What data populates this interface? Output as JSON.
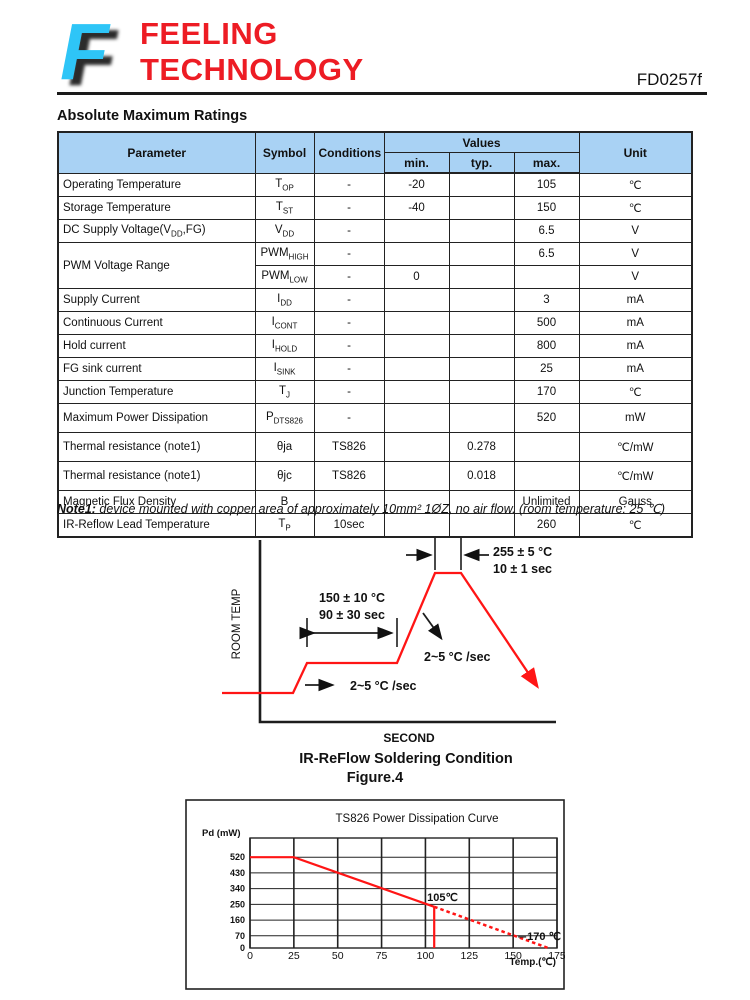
{
  "header": {
    "logo_glyph": "F",
    "logo_cyan": "#2ec5f7",
    "brand_red": "#ed1c24",
    "company_line1": "FEELING",
    "company_line2": "TECHNOLOGY",
    "doc_id": "FD0257f"
  },
  "section_title": "Absolute Maximum Ratings",
  "table": {
    "header_bg": "#a9d2f4",
    "headers": {
      "parameter": "Parameter",
      "symbol": "Symbol",
      "conditions": "Conditions",
      "values": "Values",
      "min": "min.",
      "typ": "typ.",
      "max": "max.",
      "unit": "Unit"
    },
    "rows": [
      {
        "param": "Operating Temperature",
        "sym": "T_{OP}",
        "cond": "-",
        "min": "-20",
        "typ": "",
        "max": "105",
        "unit": "℃"
      },
      {
        "param": "Storage Temperature",
        "sym": "T_{ST}",
        "cond": "-",
        "min": "-40",
        "typ": "",
        "max": "150",
        "unit": "℃"
      },
      {
        "param": "DC Supply Voltage(V_{DD},FG)",
        "sym": "V_{DD}",
        "cond": "-",
        "min": "",
        "typ": "",
        "max": "6.5",
        "unit": "V"
      },
      {
        "param": "PWM Voltage Range",
        "rowspan": 2,
        "sym": "PWM_{HIGH}",
        "cond": "-",
        "min": "",
        "typ": "",
        "max": "6.5",
        "unit": "V"
      },
      {
        "param": null,
        "sym": "PWM_{LOW}",
        "cond": "-",
        "min": "0",
        "typ": "",
        "max": "",
        "unit": "V"
      },
      {
        "param": "Supply Current",
        "sym": "I_{DD}",
        "cond": "-",
        "min": "",
        "typ": "",
        "max": "3",
        "unit": "mA"
      },
      {
        "param": "Continuous Current",
        "sym": "I_{CONT}",
        "cond": "-",
        "min": "",
        "typ": "",
        "max": "500",
        "unit": "mA"
      },
      {
        "param": "Hold current",
        "sym": "I_{HOLD}",
        "cond": "-",
        "min": "",
        "typ": "",
        "max": "800",
        "unit": "mA"
      },
      {
        "param": "FG sink current",
        "sym": "I_{SINK}",
        "cond": "-",
        "min": "",
        "typ": "",
        "max": "25",
        "unit": "mA"
      },
      {
        "param": "Junction Temperature",
        "sym": "T_{J}",
        "cond": "-",
        "min": "",
        "typ": "",
        "max": "170",
        "unit": "℃"
      },
      {
        "param": "Maximum Power Dissipation",
        "sym": "P_{DTS826}",
        "cond": "-",
        "min": "",
        "typ": "",
        "max": "520",
        "unit": "mW"
      },
      {
        "param": "Thermal resistance  (note1)",
        "sym": "θja",
        "cond": "TS826",
        "min": "",
        "typ": "0.278",
        "max": "",
        "unit": "℃/mW"
      },
      {
        "param": "Thermal resistance  (note1)",
        "sym": "θjc",
        "cond": "TS826",
        "min": "",
        "typ": "0.018",
        "max": "",
        "unit": "℃/mW"
      },
      {
        "param": "Magnetic Flux Density",
        "sym": "B",
        "cond": "",
        "min": "",
        "typ": "",
        "max": "Unlimited",
        "unit": "Gauss"
      },
      {
        "param": "IR-Reflow Lead Temperature",
        "sym": "T_{P}",
        "cond": "10sec",
        "min": "",
        "typ": "",
        "max": "260",
        "unit": "℃"
      }
    ]
  },
  "note": {
    "label": "Note1:",
    "text": " device mounted with copper area of approximately 10mm² 1ØZ, no air flow. (room temperature: 25 ℃)"
  },
  "reflow": {
    "line_color": "#ff1515",
    "y_axis": "ROOM TEMP",
    "x_axis": "SECOND",
    "caption": "IR-ReFlow Soldering Condition",
    "peak_temp": "255 ± 5 °C",
    "peak_time": "10 ± 1 sec",
    "soak_temp": "150 ± 10 °C",
    "soak_time": "90 ± 30 sec",
    "ramp_rate_low": "2~5 °C /sec",
    "ramp_rate_high": "2~5 °C /sec"
  },
  "figure4_label": "Figure.4",
  "chart_data": {
    "type": "line",
    "title": "TS826 Power Dissipation Curve",
    "xlabel": "Temp.(℃)",
    "ylabel": "Pd (mW)",
    "xlim": [
      0,
      175
    ],
    "ylim": [
      0,
      630
    ],
    "xticks": [
      0,
      25,
      50,
      75,
      100,
      125,
      150,
      175
    ],
    "yticks": [
      0,
      70,
      160,
      250,
      340,
      430,
      520
    ],
    "grid": true,
    "legend": "none",
    "line_color": "#ff1515",
    "series": [
      {
        "name": "power-dissipation-solid",
        "style": "solid",
        "points": [
          [
            0,
            520
          ],
          [
            25,
            520
          ],
          [
            105,
            236
          ]
        ]
      },
      {
        "name": "power-dissipation-derating-dashed",
        "style": "dashed",
        "points": [
          [
            105,
            236
          ],
          [
            170,
            0
          ]
        ]
      },
      {
        "name": "derating-marker-105",
        "style": "solid",
        "points": [
          [
            105,
            236
          ],
          [
            105,
            0
          ]
        ]
      }
    ],
    "annotations": [
      {
        "text": "105℃",
        "x": 101,
        "y": 292,
        "anchor": "start"
      },
      {
        "text": "170 ℃",
        "x": 158,
        "y": 69,
        "anchor": "start",
        "leader": true
      }
    ]
  }
}
